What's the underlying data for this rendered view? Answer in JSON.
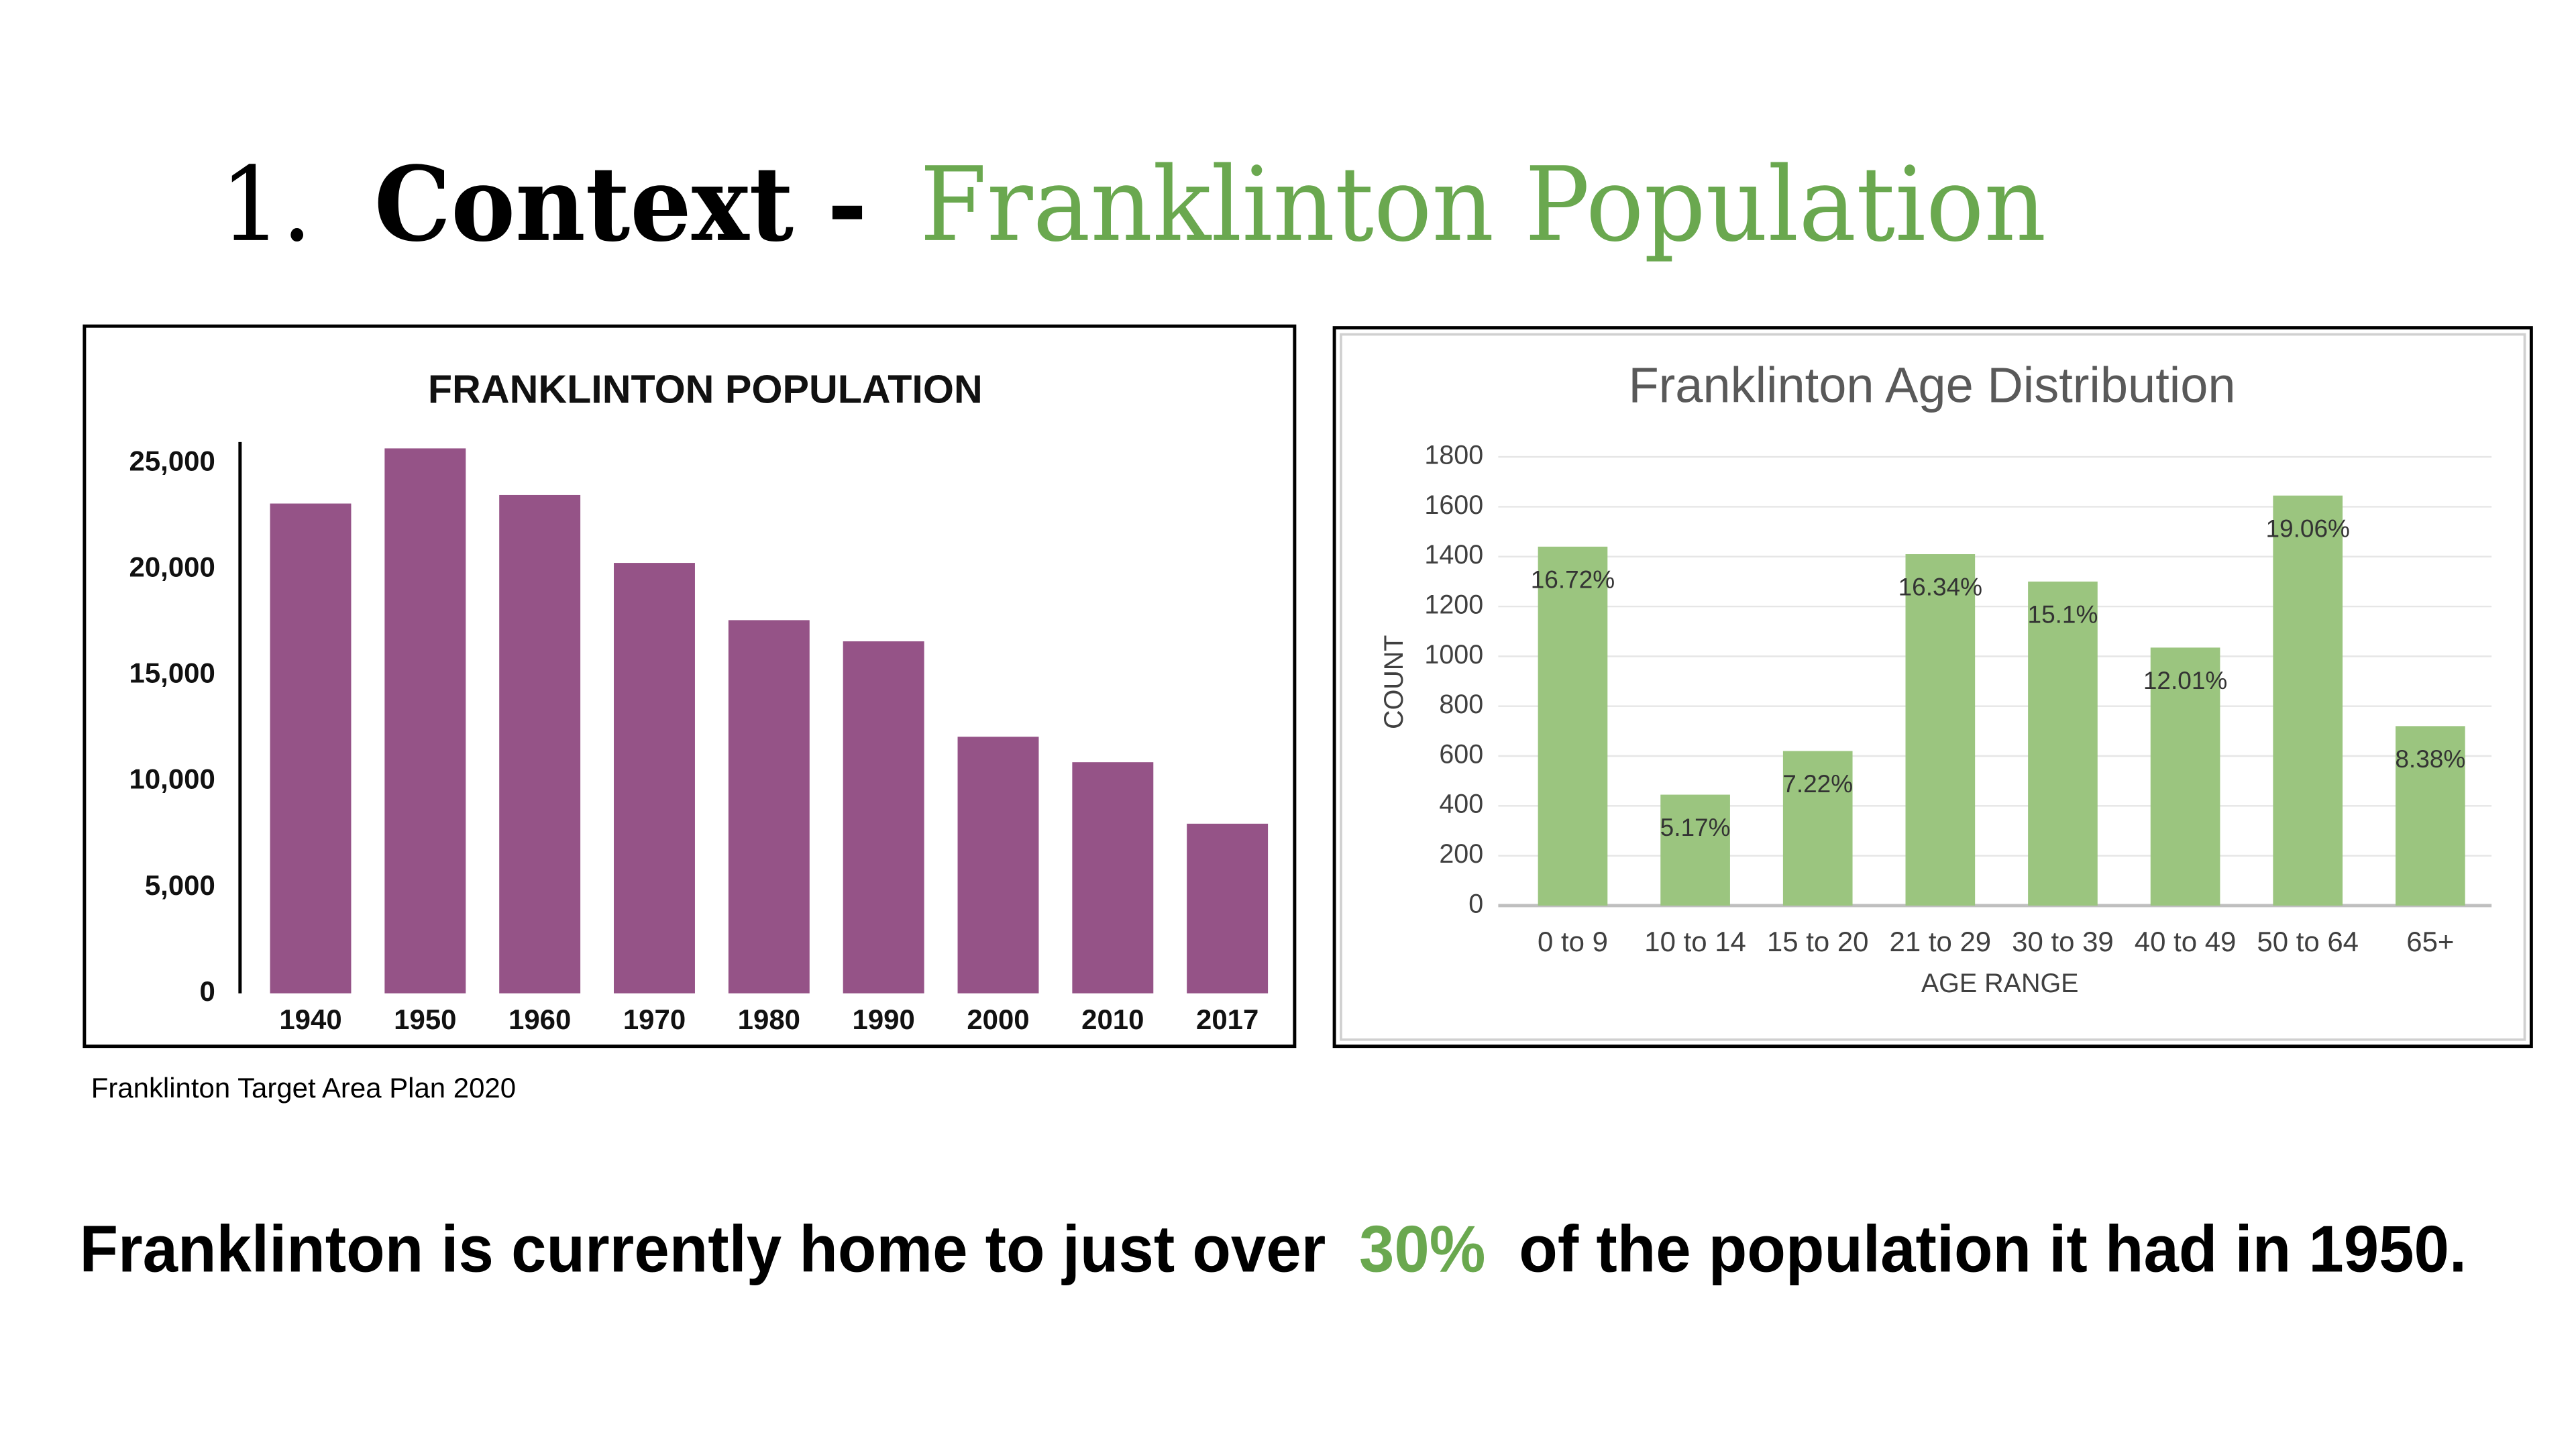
{
  "slide": {
    "title": {
      "number": "1.",
      "bold": "Context -",
      "highlight": "Franklinton Population"
    },
    "caption": "Franklinton Target Area Plan 2020",
    "statement": {
      "before": "Franklinton is currently home to just over",
      "highlight": "30%",
      "after": "of the population it had in 1950."
    }
  },
  "chart_data": [
    {
      "type": "bar",
      "title": "FRANKLINTON POPULATION",
      "categories": [
        "1940",
        "1950",
        "1960",
        "1970",
        "1980",
        "1990",
        "2000",
        "2010",
        "2017"
      ],
      "values": [
        23100,
        25700,
        23500,
        20300,
        17600,
        16600,
        12100,
        10900,
        8000
      ],
      "color": "#955387",
      "ylim": [
        0,
        26000
      ],
      "yticks": [
        0,
        {
          "value": 5000,
          "label": "5,000"
        },
        {
          "value": 10000,
          "label": "10,000"
        },
        {
          "value": 15000,
          "label": "15,000"
        },
        {
          "value": 20000,
          "label": "20,000"
        },
        {
          "value": 25000,
          "label": "25,000"
        }
      ],
      "grid": false
    },
    {
      "type": "bar",
      "title": "Franklinton Age Distribution",
      "x_label": "AGE RANGE",
      "y_label": "COUNT",
      "categories": [
        "0 to 9",
        "10 to 14",
        "15 to 20",
        "21 to 29",
        "30 to 39",
        "40 to 49",
        "50 to 64",
        "65+"
      ],
      "values": [
        1440,
        445,
        620,
        1410,
        1300,
        1035,
        1645,
        720
      ],
      "annotations": [
        "16.72%",
        "5.17%",
        "7.22%",
        "16.34%",
        "15.1%",
        "12.01%",
        "19.06%",
        "8.38%"
      ],
      "color": "#9bc57f",
      "ylim": [
        0,
        1800
      ],
      "yticks": [
        0,
        200,
        400,
        600,
        800,
        1000,
        1200,
        1400,
        1600,
        1800
      ],
      "grid": true
    }
  ]
}
